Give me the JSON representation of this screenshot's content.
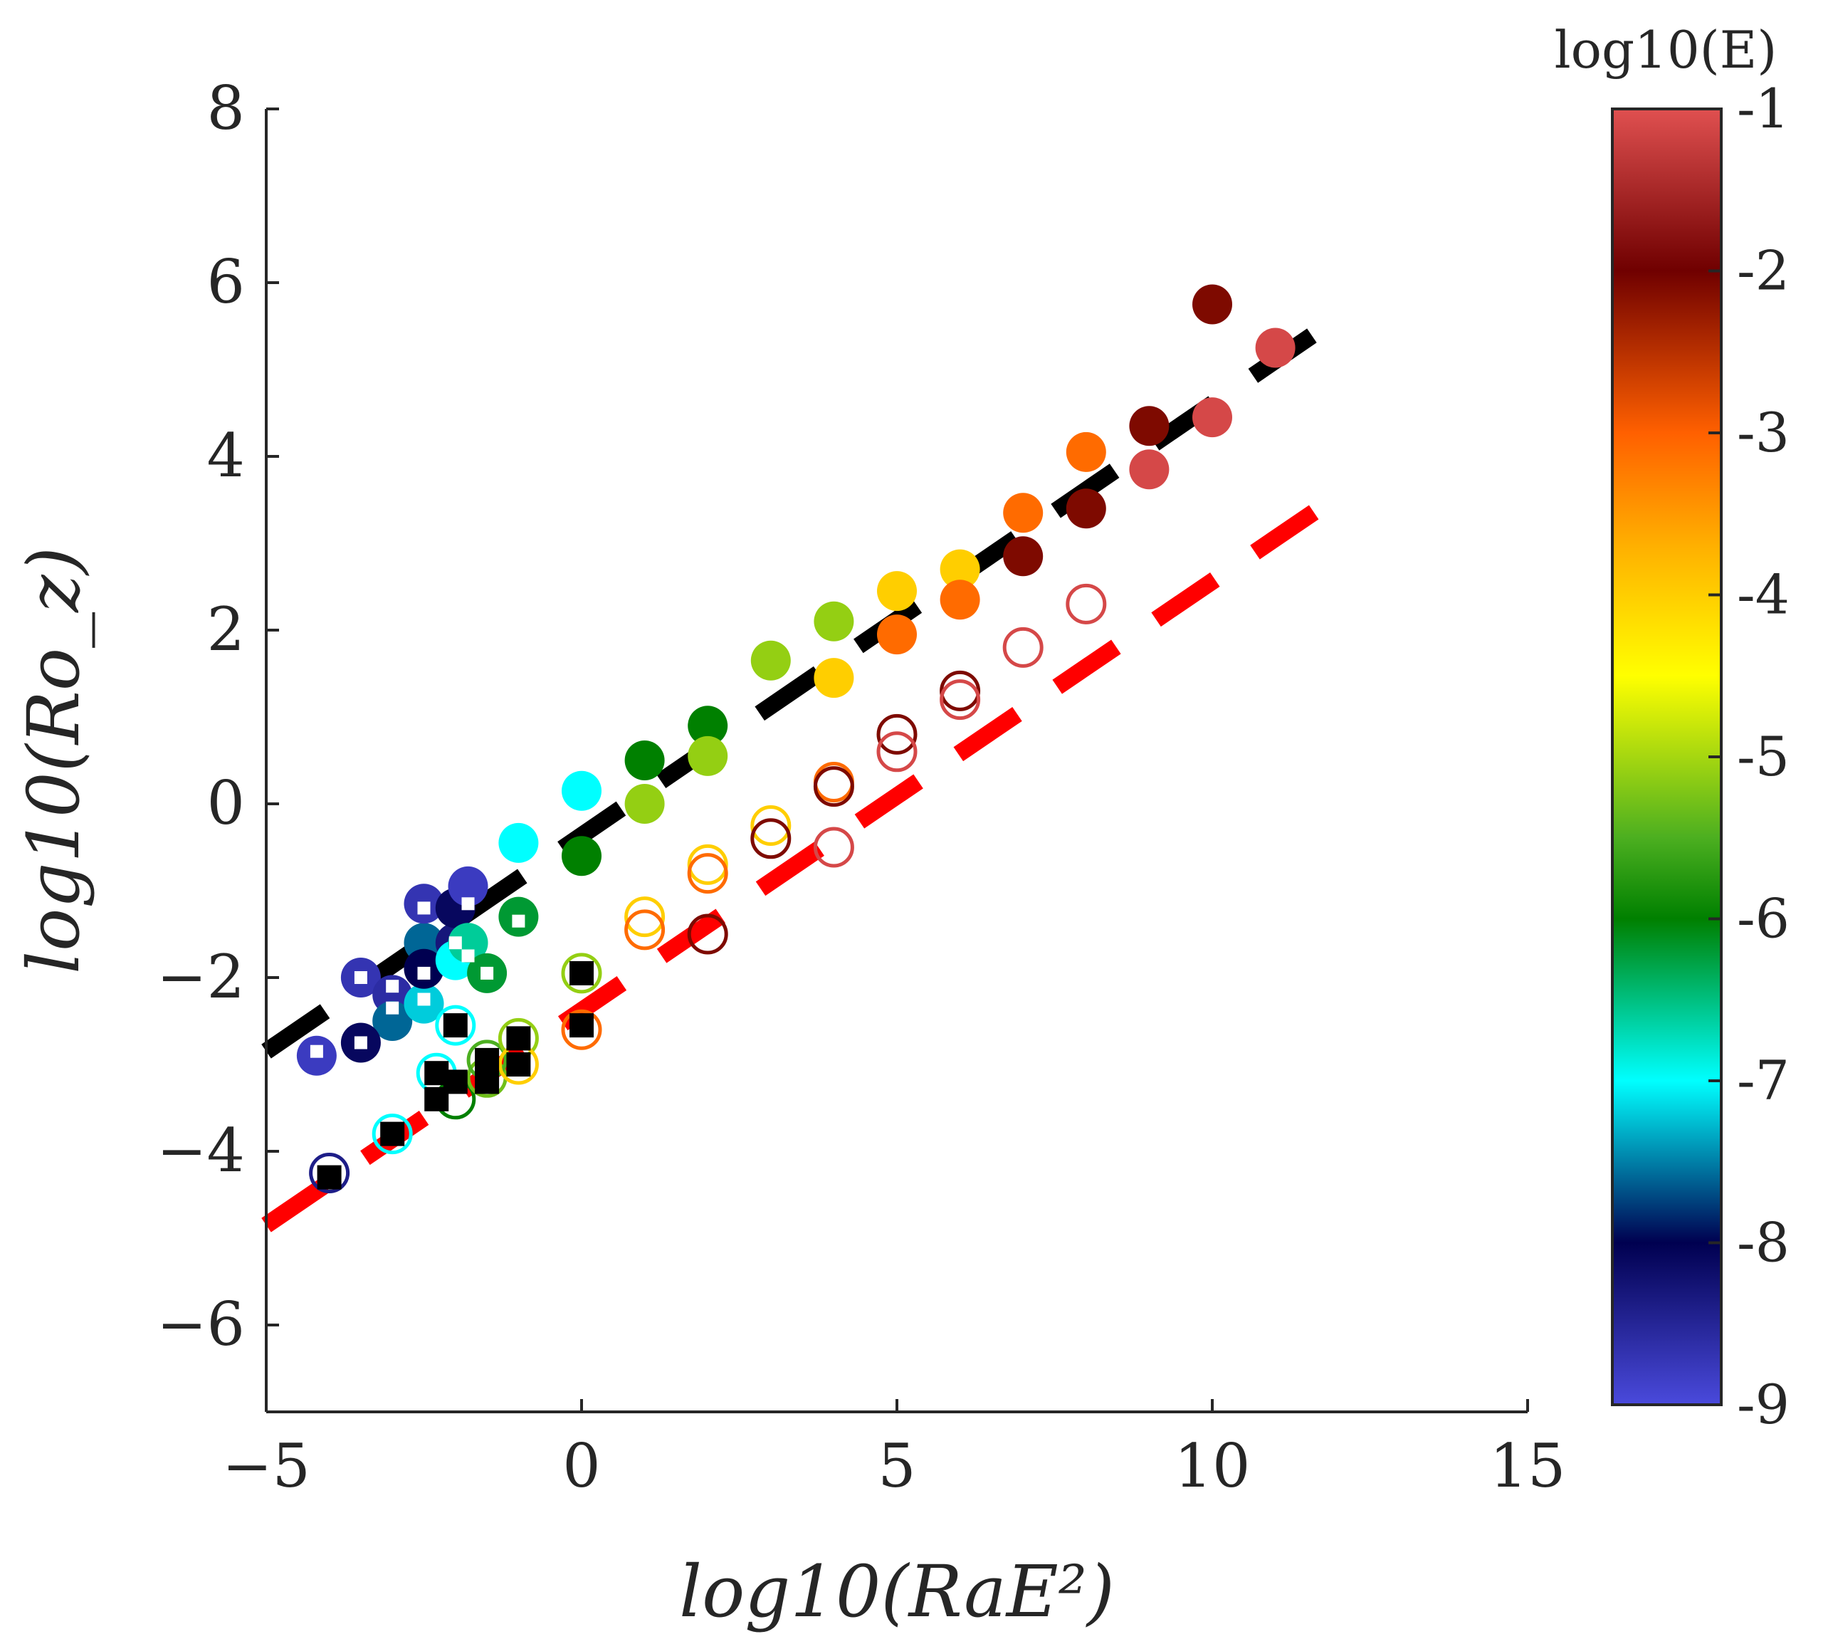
{
  "chart_data": {
    "type": "scatter",
    "xlabel": "log10(RaE²)",
    "ylabel": "log10(Ro_z)",
    "xlim": [
      -5,
      15
    ],
    "ylim": [
      -7,
      8
    ],
    "xticks": [
      -5,
      0,
      5,
      10,
      15
    ],
    "xtick_labels": [
      "−5",
      "0",
      "5",
      "10",
      "15"
    ],
    "yticks": [
      -6,
      -4,
      -2,
      0,
      2,
      4,
      6,
      8
    ],
    "ytick_labels": [
      "−6",
      "−4",
      "−2",
      "0",
      "2",
      "4",
      "6",
      "8"
    ],
    "colorbar": {
      "title": "log10(E)",
      "range": [
        -9,
        -1
      ],
      "ticks": [
        -9,
        -8,
        -7,
        -6,
        -5,
        -4,
        -3,
        -2,
        -1
      ],
      "tick_labels": [
        "-9",
        "-8",
        "-7",
        "-6",
        "-5",
        "-4",
        "-3",
        "-2",
        "-1"
      ],
      "colormap_stops": [
        {
          "v": -9.0,
          "color": "#4a4adc"
        },
        {
          "v": -8.0,
          "color": "#000050"
        },
        {
          "v": -7.0,
          "color": "#00ffff"
        },
        {
          "v": -6.0,
          "color": "#008000"
        },
        {
          "v": -5.5,
          "color": "#4caf20"
        },
        {
          "v": -4.5,
          "color": "#ffff00"
        },
        {
          "v": -3.7,
          "color": "#ffb000"
        },
        {
          "v": -3.0,
          "color": "#ff6000"
        },
        {
          "v": -2.0,
          "color": "#700000"
        },
        {
          "v": -1.0,
          "color": "#e05050"
        }
      ]
    },
    "fit_lines": [
      {
        "name": "filled-fit",
        "color": "#000000",
        "style": "dashed",
        "x": [
          -5,
          12
        ],
        "y": [
          -2.85,
          5.6
        ]
      },
      {
        "name": "open-fit",
        "color": "#ff0000",
        "style": "dashed",
        "x": [
          -5,
          12
        ],
        "y": [
          -4.85,
          3.55
        ]
      }
    ],
    "series": [
      {
        "name": "filled circles",
        "marker": "filled-circle",
        "points": [
          {
            "x": -4.2,
            "y": -2.9,
            "e": -8.8
          },
          {
            "x": -3.5,
            "y": -2.0,
            "e": -8.7
          },
          {
            "x": -3.0,
            "y": -2.2,
            "e": -8.6
          },
          {
            "x": -3.0,
            "y": -2.5,
            "e": -7.6
          },
          {
            "x": -2.5,
            "y": -1.6,
            "e": -7.6
          },
          {
            "x": -2.5,
            "y": -2.3,
            "e": -7.2
          },
          {
            "x": -2.5,
            "y": -1.9,
            "e": -8.0
          },
          {
            "x": -2.5,
            "y": -1.15,
            "e": -8.7
          },
          {
            "x": -2.0,
            "y": -1.6,
            "e": -8.3
          },
          {
            "x": -2.0,
            "y": -1.8,
            "e": -7.0
          },
          {
            "x": -2.0,
            "y": -1.2,
            "e": -8.1
          },
          {
            "x": -1.8,
            "y": -0.95,
            "e": -8.8
          },
          {
            "x": -1.8,
            "y": -1.6,
            "e": -6.6
          },
          {
            "x": -1.5,
            "y": -1.95,
            "e": -6.2
          },
          {
            "x": -3.5,
            "y": -2.75,
            "e": -8.1
          },
          {
            "x": -1.0,
            "y": -1.3,
            "e": -6.2
          },
          {
            "x": -1.0,
            "y": -0.45,
            "e": -7.0
          },
          {
            "x": 0.0,
            "y": -0.6,
            "e": -6.0
          },
          {
            "x": 0.0,
            "y": 0.15,
            "e": -7.0
          },
          {
            "x": 1.0,
            "y": 0.5,
            "e": -6.0
          },
          {
            "x": 1.0,
            "y": 0.0,
            "e": -5.1
          },
          {
            "x": 2.0,
            "y": 0.9,
            "e": -6.0
          },
          {
            "x": 2.0,
            "y": 0.55,
            "e": -5.1
          },
          {
            "x": 3.0,
            "y": 1.65,
            "e": -5.1
          },
          {
            "x": 4.0,
            "y": 2.1,
            "e": -5.1
          },
          {
            "x": 4.0,
            "y": 1.45,
            "e": -4.0
          },
          {
            "x": 5.0,
            "y": 2.45,
            "e": -4.0
          },
          {
            "x": 5.0,
            "y": 1.95,
            "e": -3.1
          },
          {
            "x": 6.0,
            "y": 2.7,
            "e": -4.0
          },
          {
            "x": 6.0,
            "y": 2.35,
            "e": -3.1
          },
          {
            "x": 7.0,
            "y": 3.35,
            "e": -3.1
          },
          {
            "x": 7.0,
            "y": 2.85,
            "e": -2.1
          },
          {
            "x": 8.0,
            "y": 4.05,
            "e": -3.1
          },
          {
            "x": 8.0,
            "y": 3.4,
            "e": -2.1
          },
          {
            "x": 9.0,
            "y": 4.35,
            "e": -2.1
          },
          {
            "x": 9.0,
            "y": 3.85,
            "e": -1.1
          },
          {
            "x": 10.0,
            "y": 5.75,
            "e": -2.1
          },
          {
            "x": 10.0,
            "y": 4.45,
            "e": -1.1
          },
          {
            "x": 11.0,
            "y": 5.25,
            "e": -1.1
          }
        ]
      },
      {
        "name": "open circles",
        "marker": "open-circle",
        "points": [
          {
            "x": -4.0,
            "y": -4.25,
            "e": -8.4
          },
          {
            "x": -3.0,
            "y": -3.8,
            "e": -7.0
          },
          {
            "x": -2.3,
            "y": -3.1,
            "e": -7.0
          },
          {
            "x": -2.0,
            "y": -2.55,
            "e": -7.0
          },
          {
            "x": -2.0,
            "y": -3.4,
            "e": -6.0
          },
          {
            "x": -1.5,
            "y": -3.15,
            "e": -5.3
          },
          {
            "x": -1.5,
            "y": -2.95,
            "e": -5.5
          },
          {
            "x": -1.0,
            "y": -2.7,
            "e": -5.1
          },
          {
            "x": -1.0,
            "y": -3.0,
            "e": -4.0
          },
          {
            "x": 0.0,
            "y": -1.95,
            "e": -5.1
          },
          {
            "x": 0.0,
            "y": -2.6,
            "e": -3.1
          },
          {
            "x": 1.0,
            "y": -1.3,
            "e": -4.0
          },
          {
            "x": 1.0,
            "y": -1.45,
            "e": -3.1
          },
          {
            "x": 2.0,
            "y": -0.7,
            "e": -4.0
          },
          {
            "x": 2.0,
            "y": -0.8,
            "e": -3.1
          },
          {
            "x": 2.0,
            "y": -1.5,
            "e": -2.1
          },
          {
            "x": 3.0,
            "y": -0.25,
            "e": -4.0
          },
          {
            "x": 3.0,
            "y": -0.4,
            "e": -2.1
          },
          {
            "x": 4.0,
            "y": 0.25,
            "e": -3.1
          },
          {
            "x": 4.0,
            "y": 0.2,
            "e": -2.1
          },
          {
            "x": 4.0,
            "y": -0.5,
            "e": -1.1
          },
          {
            "x": 5.0,
            "y": 0.8,
            "e": -2.1
          },
          {
            "x": 5.0,
            "y": 0.6,
            "e": -1.1
          },
          {
            "x": 6.0,
            "y": 1.3,
            "e": -2.1
          },
          {
            "x": 6.0,
            "y": 1.2,
            "e": -1.1
          },
          {
            "x": 7.0,
            "y": 1.8,
            "e": -1.1
          },
          {
            "x": 8.0,
            "y": 2.3,
            "e": -1.1
          }
        ]
      },
      {
        "name": "white squares",
        "marker": "white-square",
        "points": [
          {
            "x": -4.2,
            "y": -2.85
          },
          {
            "x": -3.5,
            "y": -2.0
          },
          {
            "x": -3.5,
            "y": -2.75
          },
          {
            "x": -3.0,
            "y": -2.1
          },
          {
            "x": -3.0,
            "y": -2.35
          },
          {
            "x": -2.5,
            "y": -1.2
          },
          {
            "x": -2.5,
            "y": -1.95
          },
          {
            "x": -2.5,
            "y": -2.25
          },
          {
            "x": -2.0,
            "y": -1.6
          },
          {
            "x": -1.8,
            "y": -1.15
          },
          {
            "x": -1.8,
            "y": -1.75
          },
          {
            "x": -1.5,
            "y": -1.95
          },
          {
            "x": -1.0,
            "y": -1.35
          }
        ]
      },
      {
        "name": "black squares",
        "marker": "black-square",
        "points": [
          {
            "x": -4.0,
            "y": -4.3
          },
          {
            "x": -3.0,
            "y": -3.8
          },
          {
            "x": -2.3,
            "y": -3.1
          },
          {
            "x": -2.3,
            "y": -3.4
          },
          {
            "x": -2.0,
            "y": -2.55
          },
          {
            "x": -2.0,
            "y": -3.2
          },
          {
            "x": -1.5,
            "y": -2.95
          },
          {
            "x": -1.5,
            "y": -3.2
          },
          {
            "x": -1.0,
            "y": -2.7
          },
          {
            "x": -1.0,
            "y": -3.0
          },
          {
            "x": 0.0,
            "y": -1.95
          },
          {
            "x": 0.0,
            "y": -2.55
          }
        ]
      }
    ]
  }
}
